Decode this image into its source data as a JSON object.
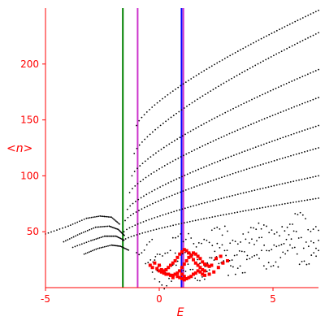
{
  "chart_data": {
    "type": "scatter",
    "xlabel": "E",
    "ylabel": "<n>",
    "xlim": [
      -5,
      7
    ],
    "ylim": [
      0,
      250
    ],
    "x_ticks": [
      -5,
      0,
      5
    ],
    "y_ticks": [
      50,
      100,
      150,
      200
    ],
    "x_tick_labels": [
      "-5",
      "0",
      "5"
    ],
    "y_tick_labels": [
      "50",
      "100",
      "150",
      "200"
    ],
    "axis_color": "#ff0000",
    "grid": false,
    "vertical_lines": [
      {
        "x": -1.6,
        "color": "#008000"
      },
      {
        "x": -0.95,
        "color": "#cc33cc"
      },
      {
        "x": 0.98,
        "color": "#0000ff"
      },
      {
        "x": 1.06,
        "color": "#cc33cc"
      }
    ],
    "series": [
      {
        "color": "#000000",
        "marker": "dot",
        "bands": [
          {
            "x0": -1.0,
            "x1": 7.0,
            "y0": 145,
            "y1": 248
          },
          {
            "x0": -1.1,
            "x1": 7.0,
            "y0": 120,
            "y1": 228
          },
          {
            "x0": -1.2,
            "x1": 7.0,
            "y0": 100,
            "y1": 195
          },
          {
            "x0": -1.3,
            "x1": 7.0,
            "y0": 85,
            "y1": 170
          },
          {
            "x0": -1.4,
            "x1": 7.0,
            "y0": 70,
            "y1": 145
          },
          {
            "x0": -1.5,
            "x1": 7.0,
            "y0": 60,
            "y1": 125
          },
          {
            "x0": -1.55,
            "x1": 7.0,
            "y0": 50,
            "y1": 100
          },
          {
            "x0": -1.6,
            "x1": 7.0,
            "y0": 42,
            "y1": 80
          },
          {
            "x0": -1.0,
            "x1": 7.0,
            "y0": 28,
            "y1": 60
          },
          {
            "x0": -0.6,
            "x1": 7.0,
            "y0": 15,
            "y1": 45
          },
          {
            "x0": -0.3,
            "x1": 7.0,
            "y0": 5,
            "y1": 32
          }
        ],
        "curves_left": [
          {
            "points": [
              [
                -5.0,
                48
              ],
              [
                -4.0,
                55
              ],
              [
                -3.2,
                62
              ],
              [
                -2.6,
                64
              ],
              [
                -2.1,
                63
              ],
              [
                -1.7,
                56
              ]
            ]
          },
          {
            "points": [
              [
                -4.2,
                41
              ],
              [
                -3.5,
                48
              ],
              [
                -2.8,
                54
              ],
              [
                -2.2,
                55
              ],
              [
                -1.8,
                52
              ],
              [
                -1.5,
                46
              ]
            ]
          },
          {
            "points": [
              [
                -3.8,
                36
              ],
              [
                -3.0,
                42
              ],
              [
                -2.4,
                46
              ],
              [
                -1.9,
                46
              ],
              [
                -1.5,
                42
              ]
            ]
          },
          {
            "points": [
              [
                -3.3,
                30
              ],
              [
                -2.7,
                35
              ],
              [
                -2.1,
                38
              ],
              [
                -1.7,
                37
              ],
              [
                -1.3,
                33
              ]
            ]
          }
        ]
      },
      {
        "color": "#ff0000",
        "marker": "dot",
        "points": [
          [
            -0.3,
            18
          ],
          [
            -0.1,
            17
          ],
          [
            0.0,
            15
          ],
          [
            0.1,
            14
          ],
          [
            0.2,
            13
          ],
          [
            0.3,
            12
          ],
          [
            0.4,
            12
          ],
          [
            0.5,
            11
          ],
          [
            0.6,
            11
          ],
          [
            0.7,
            12
          ],
          [
            0.8,
            13
          ],
          [
            0.9,
            15
          ],
          [
            1.0,
            18
          ],
          [
            1.1,
            21
          ],
          [
            1.2,
            24
          ],
          [
            1.3,
            27
          ],
          [
            1.4,
            29
          ],
          [
            1.5,
            31
          ],
          [
            1.6,
            30
          ],
          [
            1.7,
            28
          ],
          [
            1.8,
            26
          ],
          [
            1.9,
            23
          ],
          [
            2.0,
            21
          ],
          [
            2.1,
            20
          ],
          [
            2.2,
            19
          ],
          [
            2.3,
            20
          ],
          [
            0.7,
            24
          ],
          [
            0.8,
            27
          ],
          [
            0.9,
            30
          ],
          [
            1.0,
            32
          ],
          [
            1.1,
            34
          ],
          [
            1.2,
            33
          ],
          [
            1.3,
            31
          ],
          [
            1.4,
            28
          ],
          [
            1.5,
            25
          ],
          [
            1.6,
            22
          ],
          [
            1.7,
            20
          ],
          [
            1.8,
            18
          ],
          [
            1.9,
            16
          ],
          [
            2.0,
            15
          ],
          [
            0.5,
            20
          ],
          [
            0.6,
            22
          ],
          [
            0.4,
            18
          ],
          [
            0.3,
            16
          ],
          [
            0.2,
            15
          ],
          [
            0.1,
            16
          ],
          [
            0.0,
            20
          ],
          [
            -0.2,
            22
          ],
          [
            -0.4,
            20
          ],
          [
            0.9,
            9
          ],
          [
            1.0,
            8
          ],
          [
            1.1,
            7
          ],
          [
            1.2,
            8
          ],
          [
            1.3,
            9
          ],
          [
            1.4,
            10
          ],
          [
            1.5,
            12
          ],
          [
            1.6,
            13
          ],
          [
            1.7,
            15
          ],
          [
            1.8,
            14
          ],
          [
            1.9,
            12
          ],
          [
            2.0,
            11
          ],
          [
            2.2,
            12
          ],
          [
            2.4,
            14
          ],
          [
            2.6,
            18
          ],
          [
            2.8,
            22
          ],
          [
            3.0,
            24
          ],
          [
            2.5,
            26
          ],
          [
            2.7,
            28
          ],
          [
            1.1,
            10
          ],
          [
            1.0,
            12
          ],
          [
            0.8,
            10
          ],
          [
            0.6,
            9
          ]
        ]
      }
    ]
  }
}
